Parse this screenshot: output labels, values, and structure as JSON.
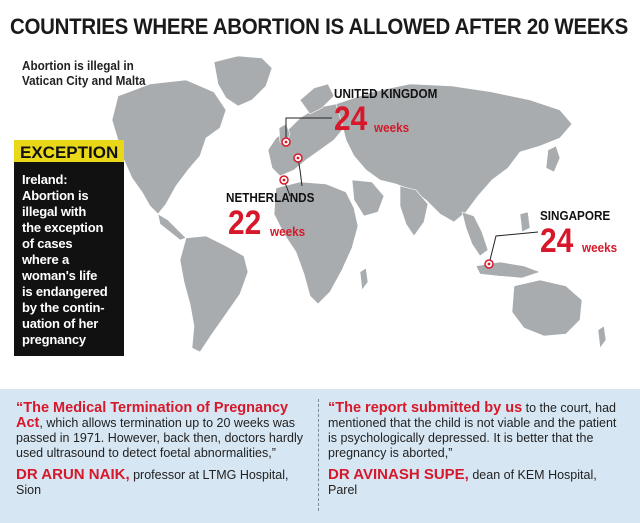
{
  "title": "COUNTRIES WHERE ABORTION IS ALLOWED AFTER 20 WEEKS",
  "illegal_note": [
    "Abortion is illegal in",
    "Vatican City and Malta"
  ],
  "exception": {
    "heading": "EXCEPTION",
    "lines": [
      "Ireland:",
      "Abortion is",
      "illegal with",
      "the exception",
      "of cases",
      "where a",
      "woman's life",
      "is endangered",
      "by the contin-",
      "uation of her",
      "pregnancy"
    ]
  },
  "countries": [
    {
      "name": "UNITED KINGDOM",
      "weeks": "24",
      "unit": "weeks"
    },
    {
      "name": "NETHERLANDS",
      "weeks": "22",
      "unit": "weeks"
    },
    {
      "name": "SINGAPORE",
      "weeks": "24",
      "unit": "weeks"
    }
  ],
  "quotes": [
    {
      "lead": "“The Medical Termination of Pregnancy Act",
      "text": ", which allows termination up to 20 weeks was passed in 1971. However, back then, doctors hardly used ultrasound to detect foetal abnormalities,”",
      "author": "DR ARUN NAIK,",
      "role": " professor at LTMG Hospital, Sion"
    },
    {
      "lead": "“The report submitted by us",
      "text": " to the court, had mentioned that the child is not viable and the patient is psychologically depressed. It is better that the pregnancy is aborted,”",
      "author": "DR AVINASH SUPE,",
      "role": " dean of KEM Hospital, Parel"
    }
  ],
  "colors": {
    "accent": "#d7182a",
    "land": "#a9acae",
    "exception_head": "#e8d817",
    "quote_bg": "#d6e6f3"
  }
}
